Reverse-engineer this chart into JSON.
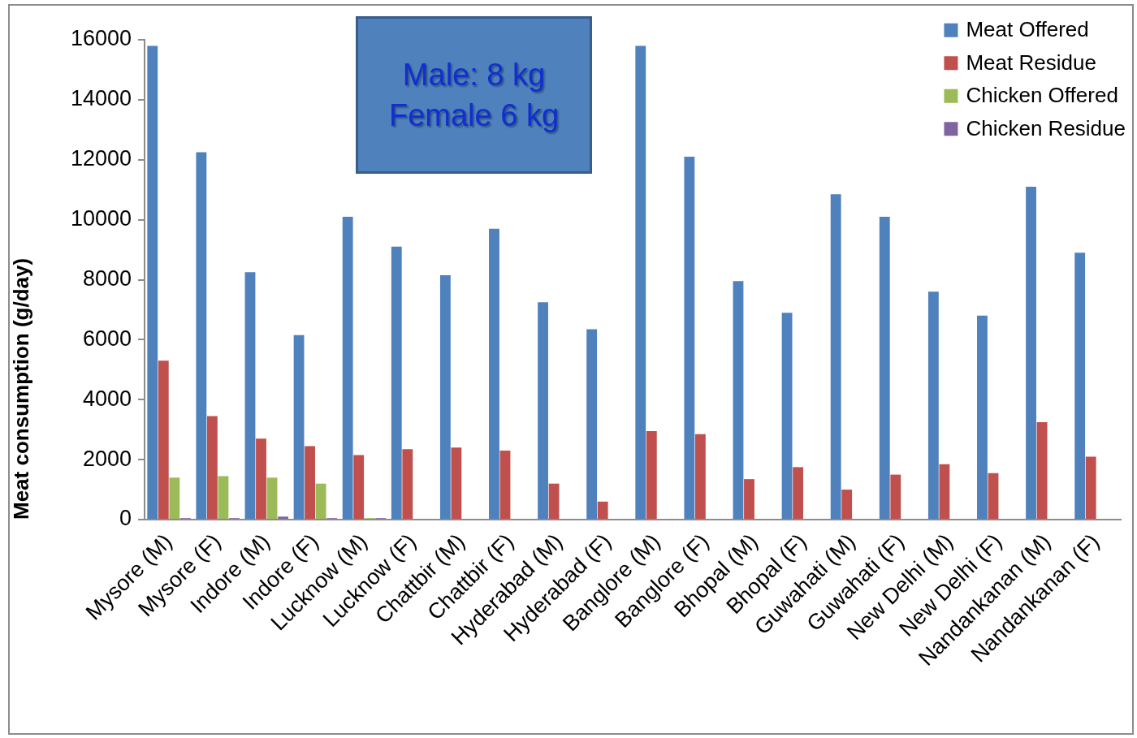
{
  "chart_data": {
    "type": "bar",
    "ylabel": "Meat consumption (g/day)",
    "annotations": [
      "Male: 8 kg",
      "Female 6 kg"
    ],
    "categories": [
      "Mysore (M)",
      "Mysore (F)",
      "Indore (M)",
      "Indore (F)",
      "Lucknow (M)",
      "Lucknow (F)",
      "Chattbir (M)",
      "Chattbir (F)",
      "Hyderabad (M)",
      "Hyderabad (F)",
      "Banglore (M)",
      "Banglore (F)",
      "Bhopal (M)",
      "Bhopal (F)",
      "Guwahati (M)",
      "Guwahati (F)",
      "New Delhi (M)",
      "New Delhi (F)",
      "Nandankanan (M)",
      "Nandankanan (F)"
    ],
    "series": [
      {
        "name": "Meat Offered",
        "color": "#4f81bd",
        "values": [
          15800,
          12250,
          8250,
          6150,
          10100,
          9100,
          8150,
          9700,
          7250,
          6350,
          15800,
          12100,
          7950,
          6900,
          10850,
          10100,
          7600,
          6800,
          11100,
          8900
        ]
      },
      {
        "name": "Meat Residue",
        "color": "#c0504d",
        "values": [
          5300,
          3450,
          2700,
          2450,
          2150,
          2350,
          2400,
          2300,
          1200,
          600,
          2950,
          2850,
          1350,
          1750,
          1000,
          1500,
          1850,
          1550,
          3250,
          2100
        ]
      },
      {
        "name": "Chicken Offered",
        "color": "#9bbb59",
        "values": [
          1400,
          1450,
          1400,
          1200,
          50,
          null,
          null,
          null,
          null,
          null,
          null,
          null,
          null,
          null,
          null,
          null,
          null,
          null,
          null,
          null
        ]
      },
      {
        "name": "Chicken Residue",
        "color": "#8064a2",
        "values": [
          50,
          50,
          100,
          50,
          50,
          null,
          null,
          null,
          null,
          null,
          null,
          null,
          null,
          null,
          null,
          null,
          null,
          null,
          null,
          null
        ]
      }
    ],
    "ylim": [
      0,
      16000
    ],
    "yticks": [
      0,
      2000,
      4000,
      6000,
      8000,
      10000,
      12000,
      14000,
      16000
    ],
    "legend": "top right"
  }
}
